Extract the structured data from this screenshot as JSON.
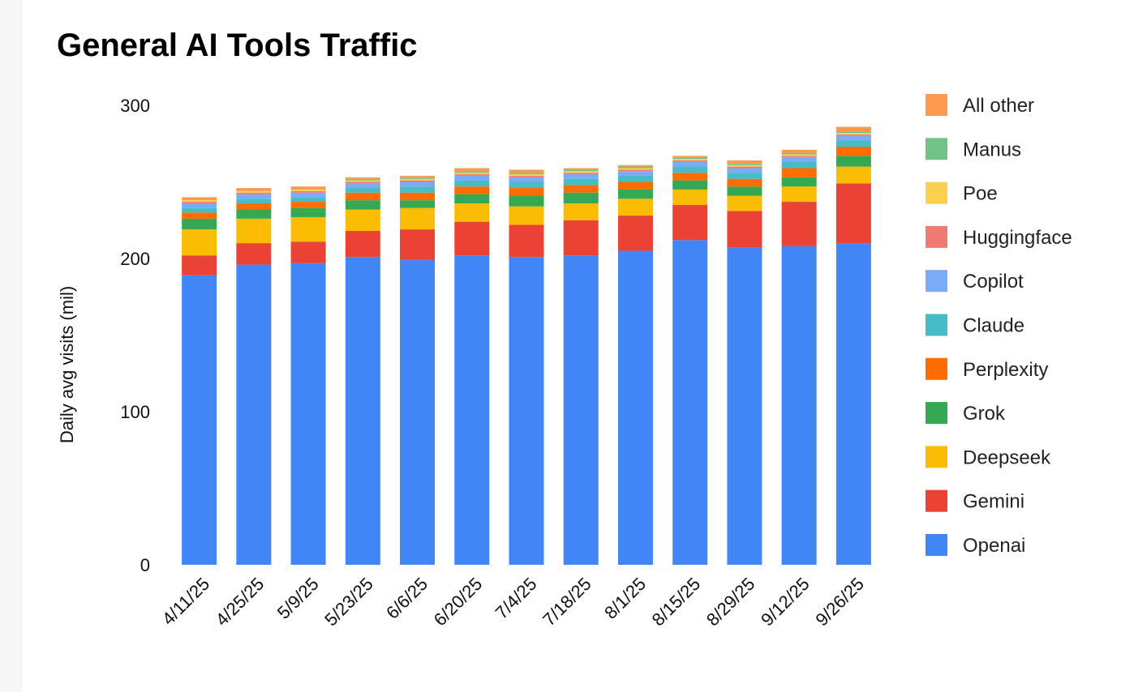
{
  "chart_data": {
    "type": "bar",
    "stacked": true,
    "title": "General AI Tools Traffic",
    "xlabel": "",
    "ylabel": "Daily avg visits (mil)",
    "ylim": [
      0,
      300
    ],
    "yticks": [
      0,
      100,
      200,
      300
    ],
    "categories": [
      "4/11/25",
      "4/25/25",
      "5/9/25",
      "5/23/25",
      "6/6/25",
      "6/20/25",
      "7/4/25",
      "7/18/25",
      "8/1/25",
      "8/15/25",
      "8/29/25",
      "9/12/25",
      "9/26/25"
    ],
    "series": [
      {
        "name": "Openai",
        "color": "#4285F4",
        "values": [
          189,
          196,
          197,
          201,
          199,
          202,
          201,
          202,
          205,
          212,
          207,
          208,
          210
        ]
      },
      {
        "name": "Gemini",
        "color": "#EA4335",
        "values": [
          13,
          14,
          14,
          17,
          20,
          22,
          21,
          23,
          23,
          23,
          24,
          29,
          39
        ]
      },
      {
        "name": "Deepseek",
        "color": "#FBBC04",
        "values": [
          17,
          16,
          16,
          14,
          14,
          12,
          12,
          11,
          11,
          10,
          10,
          10,
          11
        ]
      },
      {
        "name": "Grok",
        "color": "#34A853",
        "values": [
          7,
          6,
          6,
          6,
          5,
          6,
          7,
          7,
          6,
          6,
          6,
          6,
          7
        ]
      },
      {
        "name": "Perplexity",
        "color": "#FF6D01",
        "values": [
          4,
          4,
          4,
          5,
          5,
          5,
          5,
          5,
          5,
          5,
          5,
          6,
          6
        ]
      },
      {
        "name": "Claude",
        "color": "#46BDC6",
        "values": [
          3,
          3,
          3,
          3,
          4,
          4,
          4,
          4,
          4,
          4,
          4,
          4,
          4
        ]
      },
      {
        "name": "Copilot",
        "color": "#7BAAF7",
        "values": [
          3,
          3,
          3,
          3,
          3,
          3,
          3,
          3,
          3,
          3,
          3,
          3,
          3
        ]
      },
      {
        "name": "Huggingface",
        "color": "#F07B72",
        "values": [
          1,
          1,
          1,
          1,
          1,
          1,
          1,
          1,
          1,
          1,
          1,
          1,
          1
        ]
      },
      {
        "name": "Poe",
        "color": "#FCD04F",
        "values": [
          1,
          1,
          1,
          1,
          1,
          1,
          1,
          1,
          1,
          1,
          1,
          1,
          1
        ]
      },
      {
        "name": "Manus",
        "color": "#71C287",
        "values": [
          0,
          0,
          0,
          1,
          1,
          1,
          1,
          1,
          1,
          1,
          1,
          1,
          1
        ]
      },
      {
        "name": "All other",
        "color": "#FF994D",
        "values": [
          2,
          2,
          2,
          1,
          1,
          2,
          2,
          1,
          1,
          1,
          2,
          2,
          3
        ]
      }
    ],
    "grid": false,
    "legend": "right"
  }
}
